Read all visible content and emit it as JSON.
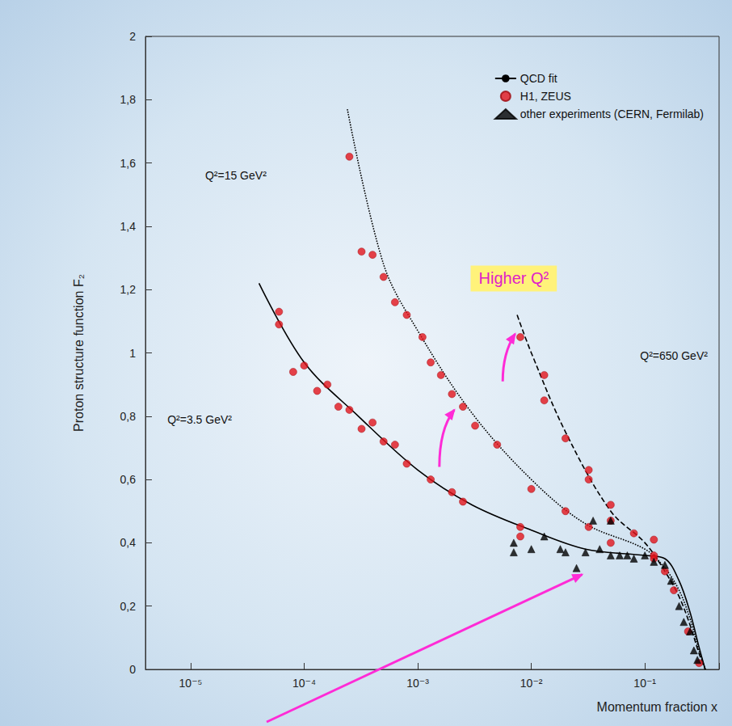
{
  "chart_data": {
    "type": "scatter",
    "xlabel": "Momentum fraction x",
    "ylabel": "Proton structure function F₂",
    "annotations": [
      "Q²=3.5 GeV²",
      "Q²=15 GeV²",
      "Q²=650 GeV²",
      "Higher Q²"
    ],
    "log": "x",
    "xlim": [
      4e-06,
      0.45
    ],
    "xticks": [
      {
        "value": 1e-05,
        "label": "10⁻⁵"
      },
      {
        "value": 0.0001,
        "label": "10⁻⁴"
      },
      {
        "value": 0.001,
        "label": "10⁻³"
      },
      {
        "value": 0.01,
        "label": "10⁻²"
      },
      {
        "value": 0.1,
        "label": "10⁻¹"
      }
    ],
    "ylim": [
      0,
      2
    ],
    "yticks": [
      0,
      {
        "value": 0.2,
        "label": "0,2"
      },
      {
        "value": 0.4,
        "label": "0,4"
      },
      {
        "value": 0.6,
        "label": "0,6"
      },
      {
        "value": 0.8,
        "label": "0,8"
      },
      1,
      {
        "value": 1.2,
        "label": "1,2"
      },
      {
        "value": 1.4,
        "label": "1,4"
      },
      {
        "value": 1.6,
        "label": "1,6"
      },
      {
        "value": 1.8,
        "label": "1,8"
      },
      2
    ],
    "grid": false,
    "legend": "top-right",
    "series": [
      {
        "name": "QCD fit",
        "type": "line",
        "line_style": "solid",
        "color": "#000000",
        "x": [
          4e-05,
          0.0001,
          0.0003,
          0.001,
          0.003,
          0.01,
          0.03,
          0.1,
          0.15,
          0.2,
          0.25,
          0.3,
          0.34
        ],
        "values": [
          1.22,
          0.97,
          0.8,
          0.63,
          0.52,
          0.44,
          0.38,
          0.36,
          0.35,
          0.28,
          0.18,
          0.07,
          0
        ]
      },
      {
        "name": "QCD fit",
        "type": "line",
        "line_style": "dotted",
        "color": "#000000",
        "x": [
          0.00024,
          0.0005,
          0.001,
          0.003,
          0.01,
          0.03,
          0.1,
          0.15,
          0.2,
          0.25,
          0.3,
          0.34
        ],
        "values": [
          1.77,
          1.28,
          1.07,
          0.81,
          0.6,
          0.46,
          0.38,
          0.32,
          0.25,
          0.16,
          0.06,
          0
        ]
      },
      {
        "name": "QCD fit",
        "type": "line",
        "line_style": "dashed",
        "color": "#000000",
        "x": [
          0.0075,
          0.01,
          0.02,
          0.05,
          0.1,
          0.15,
          0.2,
          0.25,
          0.3,
          0.34
        ],
        "values": [
          1.12,
          1.0,
          0.75,
          0.5,
          0.4,
          0.31,
          0.23,
          0.14,
          0.05,
          0
        ]
      },
      {
        "name": "H1, ZEUS",
        "type": "scatter",
        "marker": "circle",
        "color": "#e2141c",
        "x": [
          6e-05,
          6e-05,
          8e-05,
          0.0001,
          0.00013,
          0.00016,
          0.0002,
          0.00025,
          0.00032,
          0.0004,
          0.0005,
          0.00063,
          0.0008,
          0.0013,
          0.002,
          0.0025,
          0.008,
          0.008,
          0.12
        ],
        "values": [
          1.13,
          1.09,
          0.94,
          0.96,
          0.88,
          0.9,
          0.83,
          0.82,
          0.76,
          0.78,
          0.72,
          0.71,
          0.65,
          0.6,
          0.56,
          0.53,
          0.45,
          0.42,
          0.35
        ]
      },
      {
        "name": "H1, ZEUS",
        "type": "scatter",
        "marker": "circle",
        "color": "#e2141c",
        "x": [
          0.00025,
          0.00032,
          0.0004,
          0.0005,
          0.00063,
          0.0008,
          0.0011,
          0.0013,
          0.0016,
          0.002,
          0.0025,
          0.0032,
          0.005,
          0.01,
          0.02,
          0.032,
          0.05,
          0.12
        ],
        "values": [
          1.62,
          1.32,
          1.31,
          1.24,
          1.16,
          1.12,
          1.05,
          0.97,
          0.93,
          0.87,
          0.83,
          0.77,
          0.71,
          0.57,
          0.5,
          0.45,
          0.4,
          0.36
        ]
      },
      {
        "name": "H1, ZEUS",
        "type": "scatter",
        "marker": "circle",
        "color": "#e2141c",
        "x": [
          0.008,
          0.013,
          0.013,
          0.02,
          0.032,
          0.032,
          0.05,
          0.05,
          0.08,
          0.12,
          0.15,
          0.18,
          0.24,
          0.3
        ],
        "values": [
          1.05,
          0.93,
          0.85,
          0.73,
          0.63,
          0.6,
          0.52,
          0.47,
          0.43,
          0.41,
          0.31,
          0.25,
          0.12,
          0.02
        ]
      },
      {
        "name": "other experiments (CERN, Fermilab)",
        "type": "scatter",
        "marker": "triangle",
        "color": "#000000",
        "x": [
          0.007,
          0.007,
          0.01,
          0.013,
          0.018,
          0.02,
          0.025,
          0.03,
          0.035,
          0.04,
          0.05,
          0.05,
          0.06,
          0.07,
          0.08,
          0.1,
          0.12,
          0.15,
          0.17,
          0.2,
          0.22,
          0.25,
          0.27,
          0.29
        ],
        "values": [
          0.4,
          0.37,
          0.38,
          0.42,
          0.38,
          0.37,
          0.32,
          0.37,
          0.47,
          0.38,
          0.36,
          0.47,
          0.36,
          0.36,
          0.35,
          0.36,
          0.34,
          0.33,
          0.28,
          0.2,
          0.15,
          0.12,
          0.06,
          0.03
        ]
      }
    ]
  }
}
